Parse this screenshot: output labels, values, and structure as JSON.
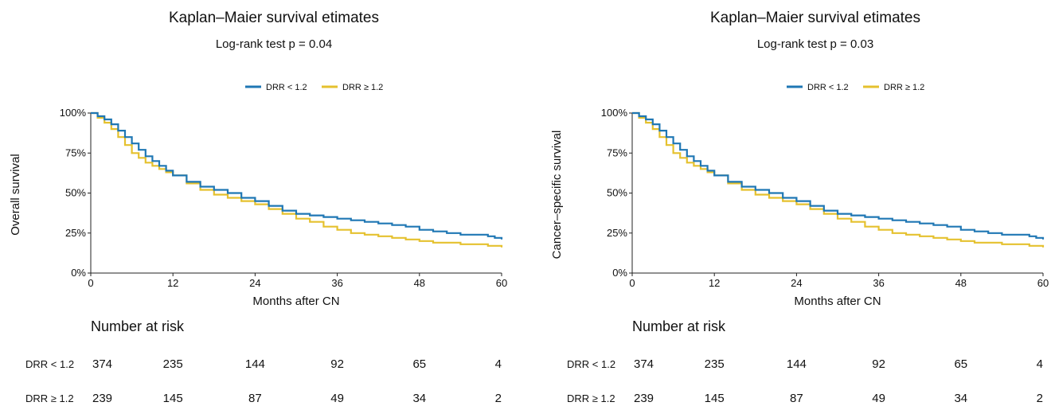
{
  "colors": {
    "low": "#1f77b4",
    "high": "#e5c12e",
    "axis": "#222222"
  },
  "chart_data": [
    {
      "type": "line",
      "title": "Kaplan–Maier survival etimates",
      "subtitle": "Log-rank test p = 0.04",
      "xlabel": "Months after CN",
      "ylabel": "Overall survival",
      "xlim": [
        0,
        60
      ],
      "ylim": [
        0,
        100
      ],
      "xticks": [
        "0",
        "12",
        "24",
        "36",
        "48",
        "60"
      ],
      "yticks": [
        "0%",
        "25%",
        "50%",
        "75%",
        "100%"
      ],
      "grid": false,
      "legend_position": "top-right",
      "series": [
        {
          "name": "DRR < 1.2",
          "color_key": "low",
          "x": [
            0,
            1,
            2,
            3,
            4,
            5,
            6,
            7,
            8,
            9,
            10,
            11,
            12,
            14,
            16,
            18,
            20,
            22,
            24,
            26,
            28,
            30,
            32,
            34,
            36,
            38,
            40,
            42,
            44,
            46,
            48,
            50,
            52,
            54,
            56,
            58,
            59,
            60
          ],
          "y": [
            100,
            98,
            96,
            93,
            89,
            85,
            81,
            77,
            73,
            70,
            67,
            64,
            61,
            57,
            54,
            52,
            50,
            47,
            45,
            42,
            39,
            37,
            36,
            35,
            34,
            33,
            32,
            31,
            30,
            29,
            27,
            26,
            25,
            24,
            24,
            23,
            22,
            21
          ]
        },
        {
          "name": "DRR ≥ 1.2",
          "color_key": "high",
          "x": [
            0,
            1,
            2,
            3,
            4,
            5,
            6,
            7,
            8,
            9,
            10,
            11,
            12,
            14,
            16,
            18,
            20,
            22,
            24,
            26,
            28,
            30,
            32,
            34,
            36,
            38,
            40,
            42,
            44,
            46,
            48,
            50,
            52,
            54,
            56,
            58,
            59,
            60
          ],
          "y": [
            100,
            97,
            94,
            90,
            85,
            80,
            75,
            72,
            69,
            67,
            65,
            63,
            61,
            56,
            52,
            49,
            47,
            45,
            43,
            40,
            37,
            34,
            32,
            29,
            27,
            25,
            24,
            23,
            22,
            21,
            20,
            19,
            19,
            18,
            18,
            17,
            17,
            16
          ]
        }
      ],
      "risk_table": {
        "title": "Number at risk",
        "rows": [
          {
            "label": "DRR < 1.2",
            "values": [
              "374",
              "235",
              "144",
              "92",
              "65",
              "4"
            ]
          },
          {
            "label": "DRR ≥ 1.2",
            "values": [
              "239",
              "145",
              "87",
              "49",
              "34",
              "2"
            ]
          }
        ]
      }
    },
    {
      "type": "line",
      "title": "Kaplan–Maier survival etimates",
      "subtitle": "Log-rank test p = 0.03",
      "xlabel": "Months after CN",
      "ylabel": "Cancer–specific survival",
      "xlim": [
        0,
        60
      ],
      "ylim": [
        0,
        100
      ],
      "xticks": [
        "0",
        "12",
        "24",
        "36",
        "48",
        "60"
      ],
      "yticks": [
        "0%",
        "25%",
        "50%",
        "75%",
        "100%"
      ],
      "grid": false,
      "legend_position": "top-right",
      "series": [
        {
          "name": "DRR < 1.2",
          "color_key": "low",
          "x": [
            0,
            1,
            2,
            3,
            4,
            5,
            6,
            7,
            8,
            9,
            10,
            11,
            12,
            14,
            16,
            18,
            20,
            22,
            24,
            26,
            28,
            30,
            32,
            34,
            36,
            38,
            40,
            42,
            44,
            46,
            48,
            50,
            52,
            54,
            56,
            58,
            59,
            60
          ],
          "y": [
            100,
            98,
            96,
            93,
            89,
            85,
            81,
            77,
            73,
            70,
            67,
            64,
            61,
            57,
            54,
            52,
            50,
            47,
            45,
            42,
            39,
            37,
            36,
            35,
            34,
            33,
            32,
            31,
            30,
            29,
            27,
            26,
            25,
            24,
            24,
            23,
            22,
            21
          ]
        },
        {
          "name": "DRR ≥ 1.2",
          "color_key": "high",
          "x": [
            0,
            1,
            2,
            3,
            4,
            5,
            6,
            7,
            8,
            9,
            10,
            11,
            12,
            14,
            16,
            18,
            20,
            22,
            24,
            26,
            28,
            30,
            32,
            34,
            36,
            38,
            40,
            42,
            44,
            46,
            48,
            50,
            52,
            54,
            56,
            58,
            59,
            60
          ],
          "y": [
            100,
            97,
            94,
            90,
            85,
            80,
            75,
            72,
            69,
            67,
            65,
            63,
            61,
            56,
            52,
            49,
            47,
            45,
            43,
            40,
            37,
            34,
            32,
            29,
            27,
            25,
            24,
            23,
            22,
            21,
            20,
            19,
            19,
            18,
            18,
            17,
            17,
            16
          ]
        }
      ],
      "risk_table": {
        "title": "Number at risk",
        "rows": [
          {
            "label": "DRR < 1.2",
            "values": [
              "374",
              "235",
              "144",
              "92",
              "65",
              "4"
            ]
          },
          {
            "label": "DRR ≥ 1.2",
            "values": [
              "239",
              "145",
              "87",
              "49",
              "34",
              "2"
            ]
          }
        ]
      }
    }
  ]
}
